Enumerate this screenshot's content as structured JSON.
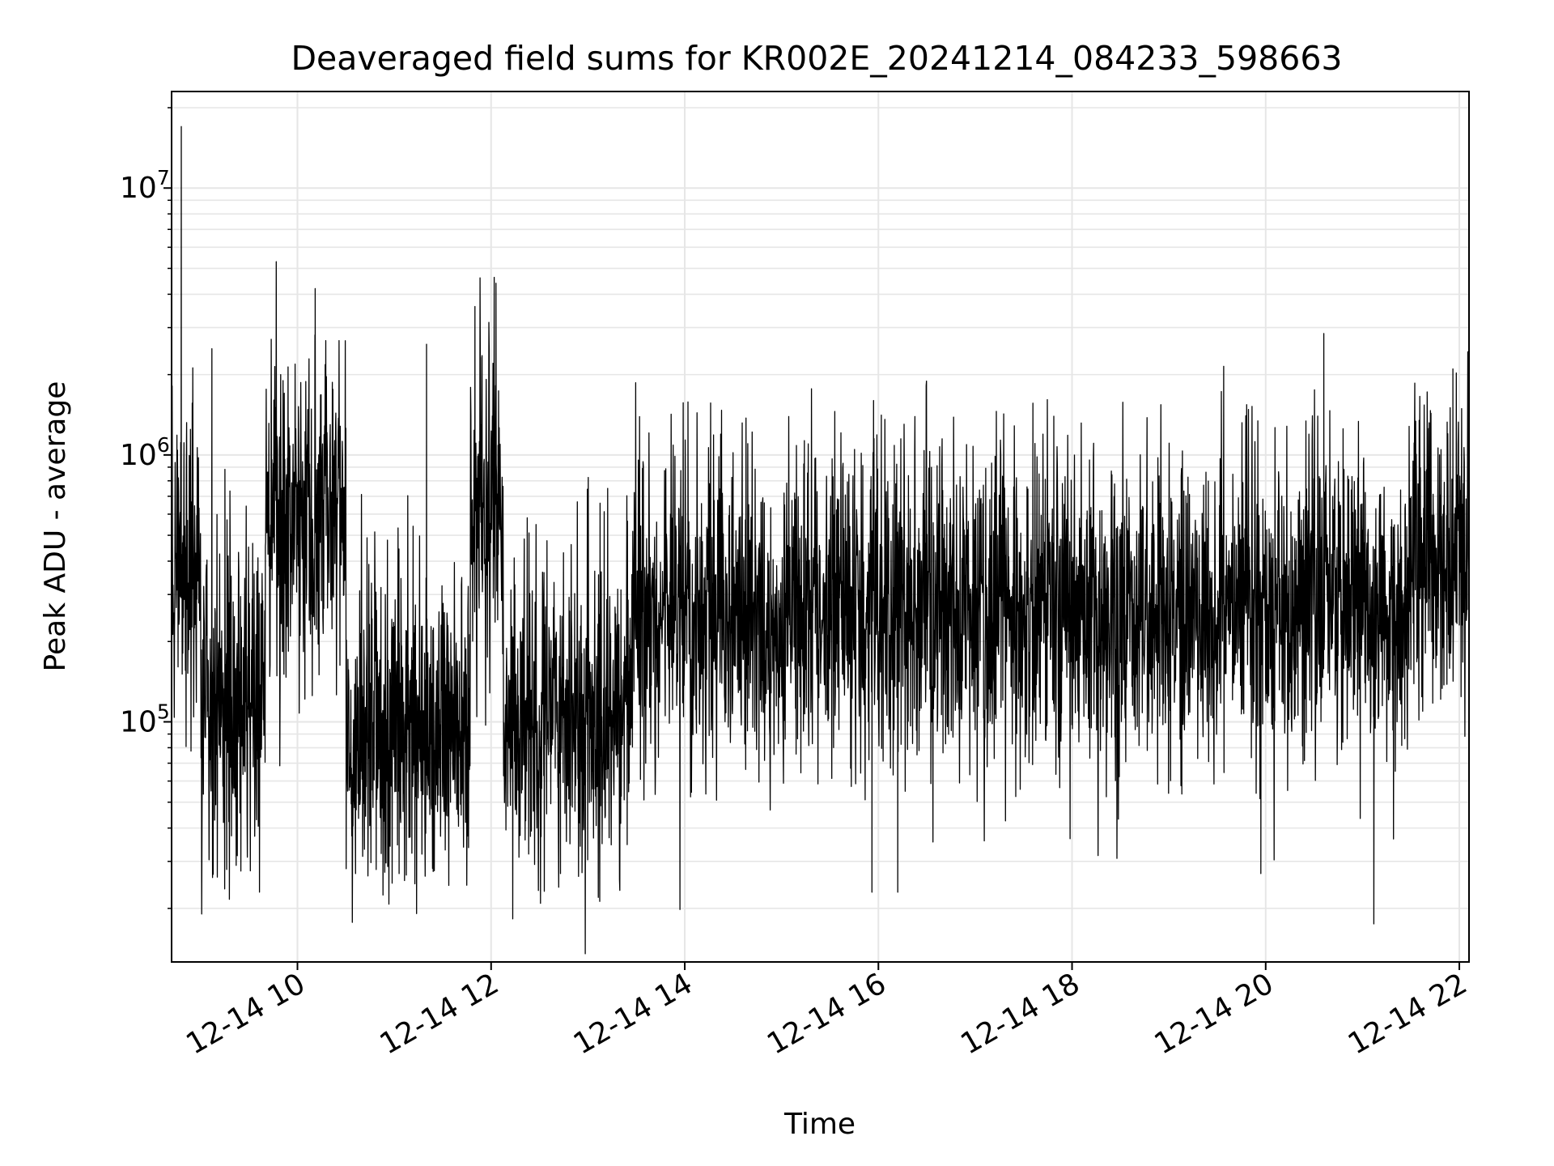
{
  "chart_data": {
    "type": "line",
    "title": "Deaveraged field sums for KR002E_20241214_084233_598663",
    "xlabel": "Time",
    "ylabel": "Peak ADU - average",
    "x_axis": {
      "kind": "time",
      "range": [
        "2024-12-14 08:42",
        "2024-12-14 22:06"
      ],
      "ticks": [
        {
          "time": "2024-12-14 10:00",
          "label": "12-14 10"
        },
        {
          "time": "2024-12-14 12:00",
          "label": "12-14 12"
        },
        {
          "time": "2024-12-14 14:00",
          "label": "12-14 14"
        },
        {
          "time": "2024-12-14 16:00",
          "label": "12-14 16"
        },
        {
          "time": "2024-12-14 18:00",
          "label": "12-14 18"
        },
        {
          "time": "2024-12-14 20:00",
          "label": "12-14 20"
        },
        {
          "time": "2024-12-14 22:00",
          "label": "12-14 22"
        }
      ]
    },
    "y_axis": {
      "scale": "log",
      "range": [
        12600,
        23000000
      ],
      "ticks": [
        {
          "value": 100000,
          "base": "10",
          "exp": "5"
        },
        {
          "value": 1000000,
          "base": "10",
          "exp": "6"
        },
        {
          "value": 10000000,
          "base": "10",
          "exp": "7"
        }
      ]
    },
    "grid": true,
    "line_color": "#000000",
    "grid_color": "#e6e6e6",
    "series": [
      {
        "segments": [
          {
            "start": "2024-12-14 08:42",
            "end": "2024-12-14 09:00",
            "level": 350000
          },
          {
            "start": "2024-12-14 09:00",
            "end": "2024-12-14 09:40",
            "level": 120000
          },
          {
            "start": "2024-12-14 09:40",
            "end": "2024-12-14 10:30",
            "level": 600000
          },
          {
            "start": "2024-12-14 10:30",
            "end": "2024-12-14 11:47",
            "level": 95000
          },
          {
            "start": "2024-12-14 11:47",
            "end": "2024-12-14 12:07",
            "level": 700000
          },
          {
            "start": "2024-12-14 12:07",
            "end": "2024-12-14 13:27",
            "level": 105000
          },
          {
            "start": "2024-12-14 13:27",
            "end": "2024-12-14 20:00",
            "level": 250000
          },
          {
            "start": "2024-12-14 20:00",
            "end": "2024-12-14 21:30",
            "level": 270000
          },
          {
            "start": "2024-12-14 21:30",
            "end": "2024-12-14 22:06",
            "level": 420000
          }
        ],
        "points": [
          {
            "time": "2024-12-14 08:48",
            "value": 17000000
          },
          {
            "time": "2024-12-14 10:11",
            "value": 4200000
          },
          {
            "time": "2024-12-14 12:03",
            "value": 4400000
          },
          {
            "time": "2024-12-14 11:50",
            "value": 3600000
          },
          {
            "time": "2024-12-14 20:36",
            "value": 2850000
          },
          {
            "time": "2024-12-14 09:07",
            "value": 2500000
          },
          {
            "time": "2024-12-14 11:20",
            "value": 2600000
          },
          {
            "time": "2024-12-14 21:56",
            "value": 2100000
          },
          {
            "time": "2024-12-14 14:02",
            "value": 1580000
          },
          {
            "time": "2024-12-14 15:57",
            "value": 1600000
          },
          {
            "time": "2024-12-14 21:07",
            "value": 17500
          },
          {
            "time": "2024-12-14 15:56",
            "value": 23000
          },
          {
            "time": "2024-12-14 16:12",
            "value": 23000
          },
          {
            "time": "2024-12-14 19:57",
            "value": 27000
          },
          {
            "time": "2024-12-14 12:43",
            "value": 27000
          },
          {
            "time": "2024-12-14 10:36",
            "value": 27000
          },
          {
            "time": "2024-12-14 11:03",
            "value": 27000
          },
          {
            "time": "2024-12-14 09:22",
            "value": 29000
          }
        ]
      }
    ]
  }
}
